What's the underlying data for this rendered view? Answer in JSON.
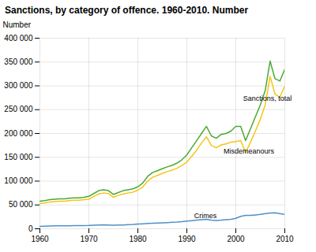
{
  "chart_data": {
    "type": "line",
    "title": "Sanctions, by category of offence. 1960-2010. Number",
    "ylabel": "Number",
    "x": [
      1960,
      1961,
      1962,
      1963,
      1964,
      1965,
      1966,
      1967,
      1968,
      1969,
      1970,
      1971,
      1972,
      1973,
      1974,
      1975,
      1976,
      1977,
      1978,
      1979,
      1980,
      1981,
      1982,
      1983,
      1984,
      1985,
      1986,
      1987,
      1988,
      1989,
      1990,
      1991,
      1992,
      1993,
      1994,
      1995,
      1996,
      1997,
      1998,
      1999,
      2000,
      2001,
      2002,
      2003,
      2004,
      2005,
      2006,
      2007,
      2008,
      2009,
      2010
    ],
    "series": [
      {
        "color": "#4aaa35",
        "values": [
          58000,
          59000,
          61000,
          62000,
          63000,
          63000,
          64000,
          65000,
          65000,
          66000,
          68000,
          74000,
          80000,
          82000,
          80000,
          72000,
          76000,
          80000,
          82000,
          84000,
          88000,
          96000,
          110000,
          118000,
          122000,
          126000,
          130000,
          133000,
          138000,
          145000,
          155000,
          170000,
          185000,
          200000,
          215000,
          195000,
          190000,
          198000,
          200000,
          205000,
          215000,
          215000,
          185000,
          210000,
          235000,
          260000,
          290000,
          352000,
          315000,
          310000,
          335000
        ]
      },
      {
        "color": "#f5c518",
        "values": [
          53000,
          54000,
          56000,
          57000,
          58000,
          58000,
          59000,
          60000,
          60000,
          61000,
          62000,
          68000,
          73000,
          75000,
          74000,
          66000,
          70000,
          73000,
          75000,
          77000,
          81000,
          88000,
          100000,
          108000,
          112000,
          116000,
          120000,
          123000,
          127000,
          133000,
          140000,
          152000,
          165000,
          180000,
          193000,
          175000,
          170000,
          176000,
          178000,
          182000,
          183000,
          185000,
          160000,
          182000,
          205000,
          230000,
          260000,
          320000,
          283000,
          276000,
          300000
        ]
      },
      {
        "color": "#4f90c8",
        "values": [
          5000,
          5500,
          5800,
          6000,
          6000,
          6200,
          6400,
          6500,
          6500,
          6800,
          7000,
          7500,
          8000,
          8200,
          8000,
          7500,
          7800,
          8000,
          8500,
          9000,
          10000,
          10500,
          11000,
          11500,
          12000,
          12500,
          13000,
          13500,
          14000,
          15000,
          16000,
          17000,
          18000,
          19000,
          20000,
          18000,
          17500,
          18000,
          19000,
          20000,
          22000,
          26000,
          28000,
          28000,
          29000,
          30000,
          32000,
          33000,
          33500,
          32000,
          30000
        ]
      }
    ],
    "annotations": [
      {
        "text": "Sanctions, total",
        "x": 2001.5,
        "y": 268000
      },
      {
        "text": "Misdemeanours",
        "x": 1997.5,
        "y": 158000
      },
      {
        "text": "Crimes",
        "x": 1991.5,
        "y": 22000
      }
    ],
    "xlim": [
      1960,
      2010
    ],
    "xticks": [
      1960,
      1970,
      1980,
      1990,
      2000,
      2010
    ],
    "ylim": [
      0,
      400000
    ],
    "yticks": [
      0,
      {
        "value": 50000,
        "label": "50 000"
      },
      {
        "value": 100000,
        "label": "100 000"
      },
      {
        "value": 150000,
        "label": "150 000"
      },
      {
        "value": 200000,
        "label": "200 000"
      },
      {
        "value": 250000,
        "label": "250 000"
      },
      {
        "value": 300000,
        "label": "300 000"
      },
      {
        "value": 350000,
        "label": "350 000"
      },
      {
        "value": 400000,
        "label": "400 000"
      }
    ],
    "grid": true
  }
}
